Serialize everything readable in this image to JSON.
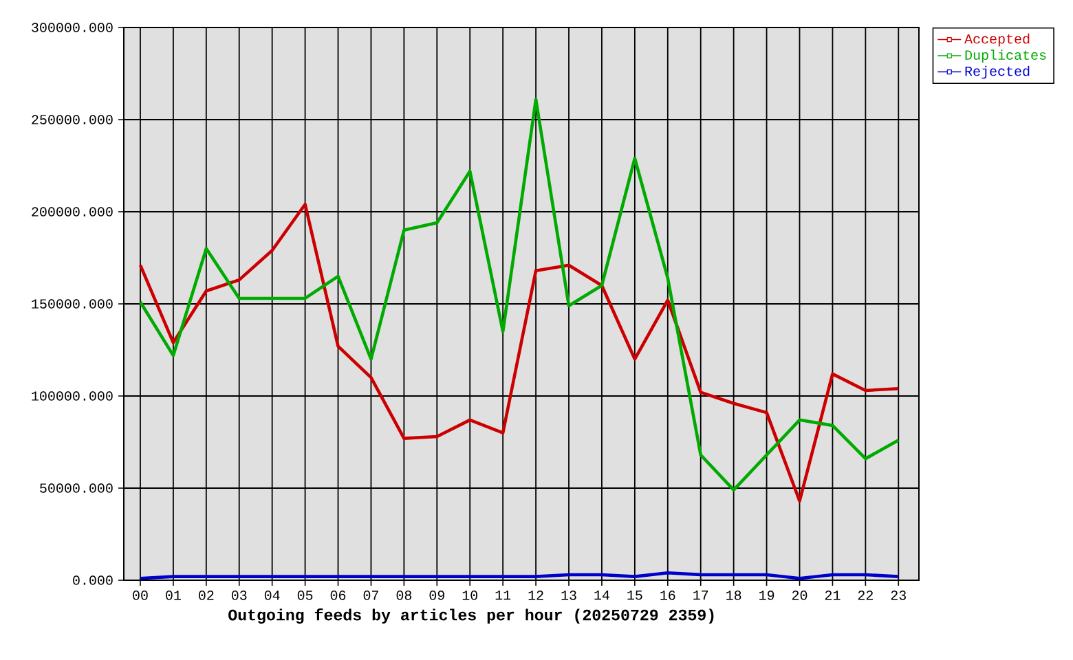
{
  "chart_data": {
    "type": "line",
    "xlabel": "Outgoing feeds by articles per hour (20250729 2359)",
    "categories": [
      "00",
      "01",
      "02",
      "03",
      "04",
      "05",
      "06",
      "07",
      "08",
      "09",
      "10",
      "11",
      "12",
      "13",
      "14",
      "15",
      "16",
      "17",
      "18",
      "19",
      "20",
      "21",
      "22",
      "23"
    ],
    "series": [
      {
        "name": "Accepted",
        "color": "#cc0000",
        "values": [
          171000,
          129000,
          157000,
          163000,
          179000,
          204000,
          127000,
          110000,
          77000,
          78000,
          87000,
          80000,
          168000,
          171000,
          160000,
          120000,
          152000,
          102000,
          96000,
          91000,
          43000,
          112000,
          103000,
          104000
        ]
      },
      {
        "name": "Duplicates",
        "color": "#00aa00",
        "values": [
          151000,
          122000,
          180000,
          153000,
          153000,
          153000,
          165000,
          120000,
          190000,
          194000,
          222000,
          135000,
          261000,
          149000,
          160000,
          229000,
          164000,
          68000,
          49000,
          68000,
          87000,
          84000,
          66000,
          76000
        ]
      },
      {
        "name": "Rejected",
        "color": "#0000cc",
        "values": [
          1000,
          2000,
          2000,
          2000,
          2000,
          2000,
          2000,
          2000,
          2000,
          2000,
          2000,
          2000,
          2000,
          3000,
          3000,
          2000,
          4000,
          3000,
          3000,
          3000,
          1000,
          3000,
          3000,
          2000
        ]
      }
    ],
    "ylim": [
      0,
      300000
    ],
    "yticks": [
      {
        "value": 0,
        "label": "0.000"
      },
      {
        "value": 50000,
        "label": "50000.000"
      },
      {
        "value": 100000,
        "label": "100000.000"
      },
      {
        "value": 150000,
        "label": "150000.000"
      },
      {
        "value": 200000,
        "label": "200000.000"
      },
      {
        "value": 250000,
        "label": "250000.000"
      },
      {
        "value": 300000,
        "label": "300000.000"
      }
    ],
    "grid": true,
    "legend": "top right",
    "line_style": "solid",
    "marker": "none"
  }
}
